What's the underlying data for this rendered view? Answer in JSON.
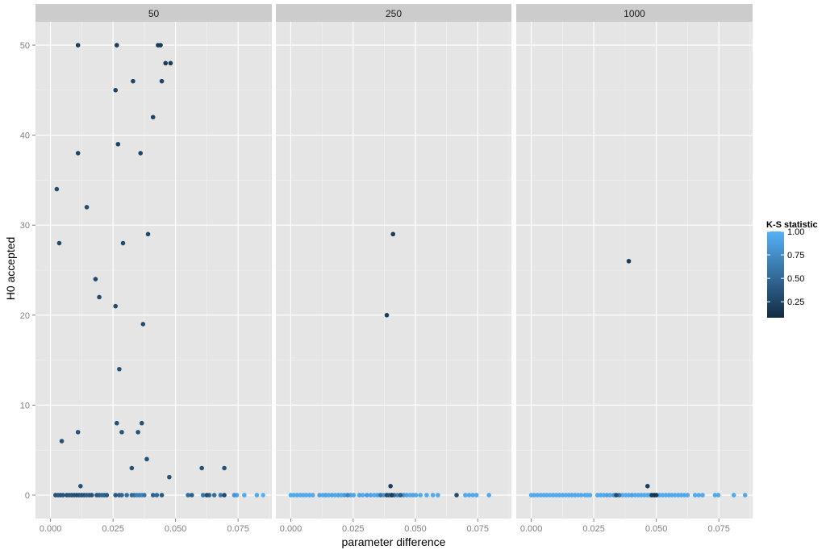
{
  "chart_data": {
    "type": "scatter",
    "xlabel": "parameter difference",
    "ylabel": "H0 accepted",
    "xlim": [
      -0.006,
      0.0885
    ],
    "ylim": [
      -2.6,
      52.6
    ],
    "x_ticks": [
      0.0,
      0.025,
      0.05,
      0.075
    ],
    "x_tick_labels": [
      "0.000",
      "0.025",
      "0.050",
      "0.075"
    ],
    "y_ticks": [
      0,
      10,
      20,
      30,
      40,
      50
    ],
    "y_tick_labels": [
      "0",
      "10",
      "20",
      "30",
      "40",
      "50"
    ],
    "grid": true,
    "legend": {
      "title": "K-S statistic",
      "position": "right",
      "range": [
        0.08,
        1.0
      ],
      "ticks": [
        0.25,
        0.5,
        0.75,
        1.0
      ],
      "tick_labels": [
        "0.25",
        "0.50",
        "0.75",
        "1.00"
      ],
      "color_low": "#132b43",
      "color_high": "#56b1f7"
    },
    "facets": [
      {
        "label": "50",
        "points": [
          [
            0.011,
            50,
            0.2
          ],
          [
            0.0265,
            50,
            0.2
          ],
          [
            0.043,
            50,
            0.2
          ],
          [
            0.044,
            50,
            0.2
          ],
          [
            0.046,
            48,
            0.2
          ],
          [
            0.048,
            48,
            0.2
          ],
          [
            0.033,
            46,
            0.25
          ],
          [
            0.0445,
            46,
            0.25
          ],
          [
            0.026,
            45,
            0.25
          ],
          [
            0.041,
            42,
            0.25
          ],
          [
            0.027,
            39,
            0.25
          ],
          [
            0.036,
            38,
            0.25
          ],
          [
            0.011,
            38,
            0.25
          ],
          [
            0.0025,
            34,
            0.3
          ],
          [
            0.0145,
            32,
            0.3
          ],
          [
            0.039,
            29,
            0.3
          ],
          [
            0.0035,
            28,
            0.3
          ],
          [
            0.029,
            28,
            0.3
          ],
          [
            0.018,
            24,
            0.3
          ],
          [
            0.0195,
            22,
            0.3
          ],
          [
            0.026,
            21,
            0.3
          ],
          [
            0.037,
            19,
            0.3
          ],
          [
            0.0275,
            14,
            0.35
          ],
          [
            0.0265,
            8,
            0.35
          ],
          [
            0.0365,
            8,
            0.35
          ],
          [
            0.011,
            7,
            0.35
          ],
          [
            0.0285,
            7,
            0.35
          ],
          [
            0.035,
            7,
            0.35
          ],
          [
            0.0045,
            6,
            0.35
          ],
          [
            0.0385,
            4,
            0.35
          ],
          [
            0.0325,
            3,
            0.35
          ],
          [
            0.0605,
            3,
            0.35
          ],
          [
            0.0695,
            3,
            0.35
          ],
          [
            0.0475,
            2,
            0.35
          ],
          [
            0.012,
            1,
            0.35
          ],
          [
            0.002,
            0,
            0.35
          ],
          [
            0.003,
            0,
            0.4
          ],
          [
            0.004,
            0,
            0.35
          ],
          [
            0.005,
            0,
            0.4
          ],
          [
            0.0065,
            0,
            0.35
          ],
          [
            0.0075,
            0,
            0.4
          ],
          [
            0.0085,
            0,
            0.35
          ],
          [
            0.0095,
            0,
            0.35
          ],
          [
            0.0105,
            0,
            0.3
          ],
          [
            0.0115,
            0,
            0.4
          ],
          [
            0.0125,
            0,
            0.35
          ],
          [
            0.0135,
            0,
            0.4
          ],
          [
            0.0145,
            0,
            0.45
          ],
          [
            0.0155,
            0,
            0.4
          ],
          [
            0.0165,
            0,
            0.35
          ],
          [
            0.0185,
            0,
            0.4
          ],
          [
            0.0195,
            0,
            0.45
          ],
          [
            0.0205,
            0,
            0.5
          ],
          [
            0.0215,
            0,
            0.45
          ],
          [
            0.0225,
            0,
            0.4
          ],
          [
            0.026,
            0,
            0.4
          ],
          [
            0.0275,
            0,
            0.45
          ],
          [
            0.0285,
            0,
            0.5
          ],
          [
            0.0305,
            0,
            0.55
          ],
          [
            0.0325,
            0,
            0.5
          ],
          [
            0.0335,
            0,
            0.6
          ],
          [
            0.0345,
            0,
            0.7
          ],
          [
            0.0355,
            0,
            0.65
          ],
          [
            0.0365,
            0,
            0.75
          ],
          [
            0.0375,
            0,
            0.6
          ],
          [
            0.041,
            0,
            0.45
          ],
          [
            0.0425,
            0,
            0.5
          ],
          [
            0.0445,
            0,
            0.4
          ],
          [
            0.055,
            0,
            0.55
          ],
          [
            0.0565,
            0,
            0.45
          ],
          [
            0.061,
            0,
            0.6
          ],
          [
            0.0625,
            0,
            0.3
          ],
          [
            0.0635,
            0,
            0.5
          ],
          [
            0.0655,
            0,
            0.55
          ],
          [
            0.068,
            0,
            0.6
          ],
          [
            0.0695,
            0,
            0.3
          ],
          [
            0.0735,
            0,
            0.8
          ],
          [
            0.0745,
            0,
            0.9
          ],
          [
            0.0775,
            0,
            0.95
          ],
          [
            0.0825,
            0,
            0.95
          ],
          [
            0.085,
            0,
            1.0
          ]
        ]
      },
      {
        "label": "250",
        "points": [
          [
            0.041,
            29,
            0.2
          ],
          [
            0.0385,
            20,
            0.2
          ],
          [
            0.04,
            1,
            0.2
          ],
          [
            0.0,
            0,
            0.95
          ],
          [
            0.0012,
            0,
            0.95
          ],
          [
            0.0025,
            0,
            0.95
          ],
          [
            0.0038,
            0,
            0.95
          ],
          [
            0.005,
            0,
            0.95
          ],
          [
            0.0062,
            0,
            0.95
          ],
          [
            0.0075,
            0,
            0.95
          ],
          [
            0.0088,
            0,
            0.95
          ],
          [
            0.0115,
            0,
            0.9
          ],
          [
            0.0128,
            0,
            0.95
          ],
          [
            0.014,
            0,
            0.9
          ],
          [
            0.0152,
            0,
            0.95
          ],
          [
            0.0165,
            0,
            0.9
          ],
          [
            0.0178,
            0,
            0.95
          ],
          [
            0.019,
            0,
            0.9
          ],
          [
            0.0202,
            0,
            0.95
          ],
          [
            0.0215,
            0,
            0.85
          ],
          [
            0.0228,
            0,
            0.7
          ],
          [
            0.024,
            0,
            0.9
          ],
          [
            0.0252,
            0,
            0.95
          ],
          [
            0.0275,
            0,
            0.9
          ],
          [
            0.0288,
            0,
            0.95
          ],
          [
            0.0305,
            0,
            0.85
          ],
          [
            0.032,
            0,
            0.9
          ],
          [
            0.0335,
            0,
            0.95
          ],
          [
            0.0348,
            0,
            0.9
          ],
          [
            0.036,
            0,
            0.6
          ],
          [
            0.0372,
            0,
            0.85
          ],
          [
            0.0385,
            0,
            0.3
          ],
          [
            0.0395,
            0,
            0.5
          ],
          [
            0.0405,
            0,
            0.2
          ],
          [
            0.0415,
            0,
            0.55
          ],
          [
            0.0428,
            0,
            0.7
          ],
          [
            0.044,
            0,
            0.4
          ],
          [
            0.0452,
            0,
            0.8
          ],
          [
            0.0465,
            0,
            0.9
          ],
          [
            0.0478,
            0,
            0.95
          ],
          [
            0.049,
            0,
            0.9
          ],
          [
            0.0502,
            0,
            0.95
          ],
          [
            0.052,
            0,
            0.95
          ],
          [
            0.0545,
            0,
            0.95
          ],
          [
            0.057,
            0,
            0.95
          ],
          [
            0.059,
            0,
            0.95
          ],
          [
            0.0665,
            0,
            0.3
          ],
          [
            0.07,
            0,
            0.95
          ],
          [
            0.0715,
            0,
            0.95
          ],
          [
            0.073,
            0,
            0.95
          ],
          [
            0.0745,
            0,
            0.95
          ],
          [
            0.0795,
            0,
            0.95
          ]
        ]
      },
      {
        "label": "1000",
        "points": [
          [
            0.039,
            26,
            0.2
          ],
          [
            0.0465,
            1,
            0.2
          ],
          [
            0.0,
            0,
            0.95
          ],
          [
            0.0012,
            0,
            0.95
          ],
          [
            0.0025,
            0,
            0.95
          ],
          [
            0.0038,
            0,
            0.95
          ],
          [
            0.005,
            0,
            0.95
          ],
          [
            0.0062,
            0,
            0.95
          ],
          [
            0.0075,
            0,
            0.95
          ],
          [
            0.0088,
            0,
            0.95
          ],
          [
            0.01,
            0,
            0.95
          ],
          [
            0.0112,
            0,
            0.95
          ],
          [
            0.0125,
            0,
            0.95
          ],
          [
            0.0138,
            0,
            0.95
          ],
          [
            0.015,
            0,
            0.95
          ],
          [
            0.0162,
            0,
            0.95
          ],
          [
            0.0175,
            0,
            0.95
          ],
          [
            0.0188,
            0,
            0.95
          ],
          [
            0.02,
            0,
            0.95
          ],
          [
            0.0215,
            0,
            0.95
          ],
          [
            0.0225,
            0,
            0.95
          ],
          [
            0.0235,
            0,
            0.95
          ],
          [
            0.0265,
            0,
            0.95
          ],
          [
            0.0278,
            0,
            0.95
          ],
          [
            0.029,
            0,
            0.95
          ],
          [
            0.0302,
            0,
            0.9
          ],
          [
            0.0315,
            0,
            0.95
          ],
          [
            0.033,
            0,
            0.8
          ],
          [
            0.034,
            0,
            0.3
          ],
          [
            0.0352,
            0,
            0.6
          ],
          [
            0.0365,
            0,
            0.95
          ],
          [
            0.0378,
            0,
            0.95
          ],
          [
            0.039,
            0,
            0.95
          ],
          [
            0.0402,
            0,
            0.9
          ],
          [
            0.0415,
            0,
            0.95
          ],
          [
            0.0428,
            0,
            0.95
          ],
          [
            0.044,
            0,
            0.95
          ],
          [
            0.0452,
            0,
            0.95
          ],
          [
            0.0465,
            0,
            0.95
          ],
          [
            0.0475,
            0,
            0.95
          ],
          [
            0.0482,
            0,
            0.2
          ],
          [
            0.0492,
            0,
            0.15
          ],
          [
            0.05,
            0,
            0.2
          ],
          [
            0.0512,
            0,
            0.95
          ],
          [
            0.0525,
            0,
            0.95
          ],
          [
            0.0538,
            0,
            0.95
          ],
          [
            0.055,
            0,
            0.95
          ],
          [
            0.0562,
            0,
            0.95
          ],
          [
            0.0575,
            0,
            0.95
          ],
          [
            0.0588,
            0,
            0.95
          ],
          [
            0.06,
            0,
            0.95
          ],
          [
            0.0612,
            0,
            0.95
          ],
          [
            0.0625,
            0,
            0.95
          ],
          [
            0.0655,
            0,
            0.95
          ],
          [
            0.067,
            0,
            0.95
          ],
          [
            0.0685,
            0,
            0.95
          ],
          [
            0.0735,
            0,
            0.95
          ],
          [
            0.0748,
            0,
            0.95
          ],
          [
            0.081,
            0,
            0.95
          ],
          [
            0.0855,
            0,
            0.95
          ]
        ]
      }
    ]
  }
}
